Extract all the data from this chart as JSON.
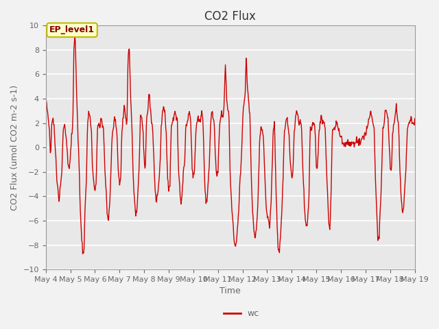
{
  "title": "CO2 Flux",
  "xlabel": "Time",
  "ylabel": "CO2 Flux (umol CO2 m-2 s-1)",
  "ylim": [
    -10,
    10
  ],
  "yticks": [
    -10,
    -8,
    -6,
    -4,
    -2,
    0,
    2,
    4,
    6,
    8,
    10
  ],
  "x_tick_labels": [
    "May 4",
    "May 5",
    "May 6",
    "May 7",
    "May 8",
    "May 9",
    "May 10",
    "May 11",
    "May 12",
    "May 13",
    "May 14",
    "May 15",
    "May 16",
    "May 17",
    "May 18",
    "May 19"
  ],
  "line_color": "#CC0000",
  "line_width": 1.0,
  "bg_outer": "#F2F2F2",
  "bg_inner": "#E8E8E8",
  "legend_label": "wc",
  "annotation_text": "EP_level1",
  "annotation_bg": "#FFFFCC",
  "annotation_border": "#BBBB00",
  "title_fontsize": 12,
  "label_fontsize": 9,
  "tick_fontsize": 8,
  "tick_color": "#666666",
  "grid_color": "#FFFFFF",
  "spine_color": "#999999"
}
